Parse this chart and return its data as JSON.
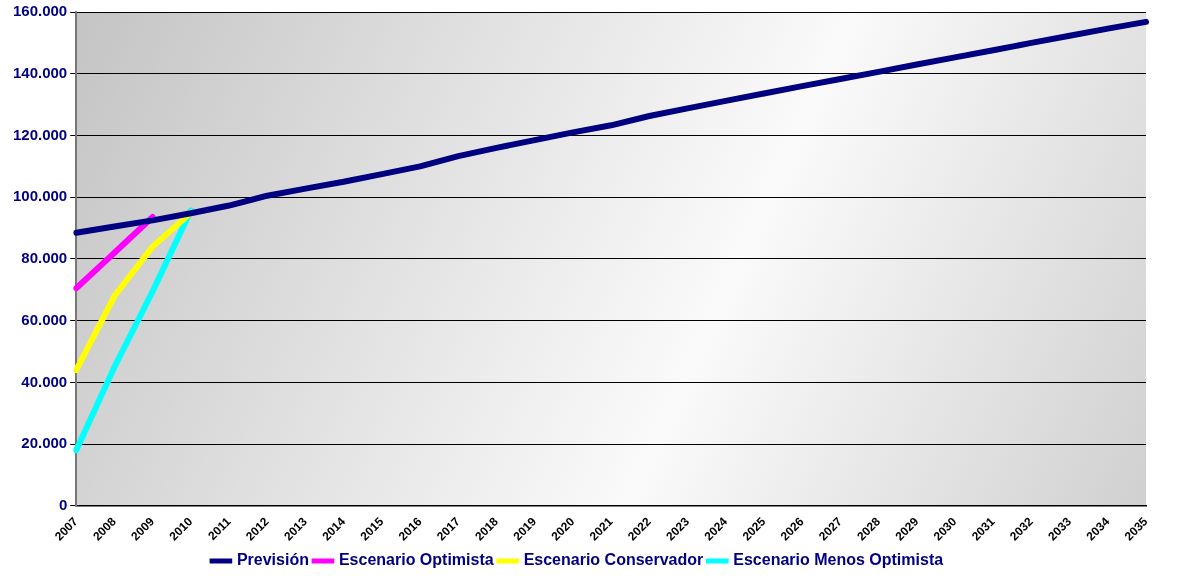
{
  "chart_data": {
    "type": "line",
    "categories": [
      "2007",
      "2008",
      "2009",
      "2010",
      "2011",
      "2012",
      "2013",
      "2014",
      "2015",
      "2016",
      "2017",
      "2018",
      "2019",
      "2020",
      "2021",
      "2022",
      "2023",
      "2024",
      "2025",
      "2026",
      "2027",
      "2028",
      "2029",
      "2030",
      "2031",
      "2032",
      "2033",
      "2034",
      "2035"
    ],
    "series": [
      {
        "name": "Previsión",
        "color": "#000080",
        "values": [
          88500,
          90500,
          92500,
          94800,
          97300,
          100500,
          102800,
          105000,
          107500,
          110000,
          113300,
          116000,
          118500,
          121000,
          123300,
          126300,
          128800,
          131200,
          133600,
          136000,
          138300,
          140600,
          143000,
          145300,
          147600,
          150000,
          152300,
          154600,
          156800
        ]
      },
      {
        "name": "Escenario Optimista",
        "color": "#ff00ff",
        "values": [
          70500,
          82000,
          93600,
          null,
          null,
          null,
          null,
          null,
          null,
          null,
          null,
          null,
          null,
          null,
          null,
          null,
          null,
          null,
          null,
          null,
          null,
          null,
          null,
          null,
          null,
          null,
          null,
          null,
          null
        ]
      },
      {
        "name": "Escenario Conservador",
        "color": "#ffff00",
        "values": [
          44000,
          68000,
          84000,
          95000,
          null,
          null,
          null,
          null,
          null,
          null,
          null,
          null,
          null,
          null,
          null,
          null,
          null,
          null,
          null,
          null,
          null,
          null,
          null,
          null,
          null,
          null,
          null,
          null,
          null
        ]
      },
      {
        "name": "Escenario Menos Optimista",
        "color": "#00ffff",
        "values": [
          18000,
          45000,
          69500,
          95700,
          null,
          null,
          null,
          null,
          null,
          null,
          null,
          null,
          null,
          null,
          null,
          null,
          null,
          null,
          null,
          null,
          null,
          null,
          null,
          null,
          null,
          null,
          null,
          null,
          null
        ]
      }
    ],
    "ylim": [
      0,
      160000
    ],
    "yticks": [
      0,
      {
        "value": 20000,
        "label": "20.000"
      },
      {
        "value": 40000,
        "label": "40.000"
      },
      {
        "value": 60000,
        "label": "60.000"
      },
      {
        "value": 80000,
        "label": "80.000"
      },
      {
        "value": 100000,
        "label": "100.000"
      },
      {
        "value": 120000,
        "label": "120.000"
      },
      {
        "value": 140000,
        "label": "140.000"
      },
      {
        "value": 160000,
        "label": "160.000"
      }
    ],
    "grid": "y",
    "legend": "bottom",
    "marker": "none",
    "line_style": "solid"
  }
}
